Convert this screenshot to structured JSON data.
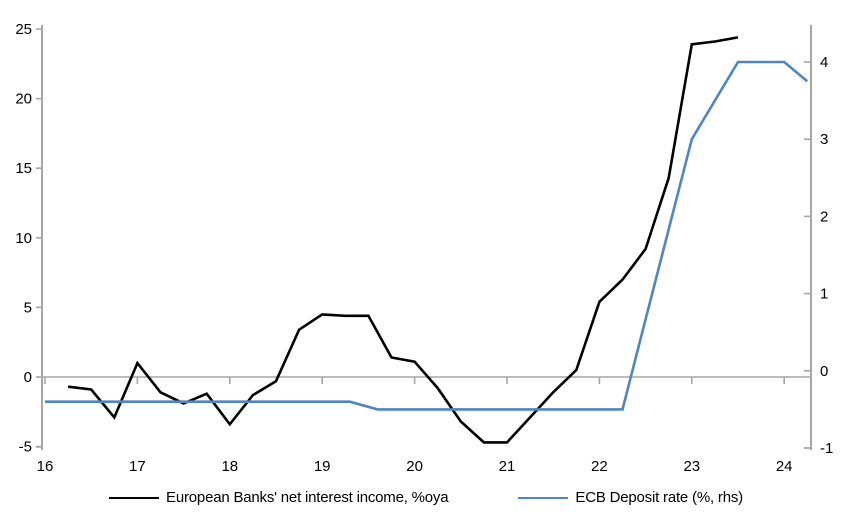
{
  "chart_data": {
    "type": "line",
    "title": "",
    "xlabel": "",
    "ylabel_left": "",
    "ylabel_right": "",
    "grid": "zero-line-only",
    "legend_position": "bottom-center",
    "x_axis": {
      "tick_values": [
        16,
        17,
        18,
        19,
        20,
        21,
        22,
        23,
        24
      ],
      "tick_labels": [
        "16",
        "17",
        "18",
        "19",
        "20",
        "21",
        "22",
        "23",
        "24"
      ],
      "range": [
        15.97,
        24.29
      ]
    },
    "left_axis": {
      "tick_values": [
        25,
        20,
        15,
        10,
        5,
        0,
        -5
      ],
      "tick_labels": [
        "25",
        "20",
        "15",
        "10",
        "5",
        "0",
        "-5"
      ],
      "range": [
        -5,
        25
      ]
    },
    "right_axis": {
      "tick_values": [
        4,
        3,
        2,
        1,
        0,
        -1
      ],
      "tick_labels": [
        "4",
        "3",
        "2",
        "1",
        "0",
        "-1"
      ],
      "range": [
        -1,
        4.5
      ]
    },
    "series": [
      {
        "name": "European Banks' net interest income, %oya",
        "axis": "left",
        "color": "#000000",
        "x": [
          16.25,
          16.5,
          16.75,
          17.0,
          17.25,
          17.5,
          17.75,
          18.0,
          18.25,
          18.5,
          18.75,
          19.0,
          19.25,
          19.5,
          19.75,
          20.0,
          20.25,
          20.5,
          20.75,
          21.0,
          21.25,
          21.5,
          21.75,
          22.0,
          22.25,
          22.5,
          22.75,
          23.0,
          23.25,
          23.5
        ],
        "y": [
          -0.7,
          -0.9,
          -2.9,
          1.0,
          -1.1,
          -1.9,
          -1.2,
          -3.4,
          -1.3,
          -0.3,
          3.4,
          4.5,
          4.4,
          4.4,
          1.4,
          1.1,
          -0.8,
          -3.2,
          -4.7,
          -4.7,
          -2.9,
          -1.1,
          0.5,
          5.4,
          7.0,
          9.2,
          14.3,
          23.9,
          24.1,
          24.4
        ]
      },
      {
        "name": "ECB Deposit rate (%, rhs)",
        "axis": "right",
        "color": "#4f85c0",
        "x": [
          16.0,
          19.3,
          19.6,
          22.25,
          23.0,
          23.25,
          23.5,
          24.0,
          24.25
        ],
        "y": [
          -0.4,
          -0.4,
          -0.5,
          -0.5,
          3.0,
          3.5,
          4.0,
          4.0,
          3.75
        ]
      }
    ]
  },
  "colors": {
    "background": "#ffffff",
    "axis": "#a6a6a6",
    "zero_line": "#a6a6a6",
    "tick_label": "#000000"
  }
}
